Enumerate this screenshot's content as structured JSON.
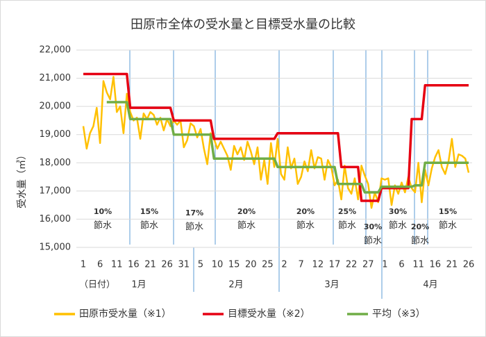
{
  "chart_data": {
    "type": "line",
    "title": "田原市全体の受水量と目標受水量の比較",
    "y_label": "受水量（㎥）",
    "x_label": "（日付）",
    "months": [
      "1月",
      "2月",
      "3月",
      "4月"
    ],
    "categories": [
      "1",
      null,
      null,
      null,
      null,
      "6",
      null,
      null,
      null,
      null,
      "11",
      null,
      null,
      null,
      null,
      "16",
      null,
      null,
      null,
      null,
      "21",
      null,
      null,
      null,
      null,
      "26",
      null,
      null,
      null,
      null,
      "31",
      null,
      null,
      null,
      null,
      "5",
      null,
      null,
      null,
      null,
      "10",
      null,
      null,
      null,
      null,
      "15",
      null,
      null,
      null,
      null,
      "20",
      null,
      null,
      null,
      null,
      "25",
      null,
      null,
      null,
      null,
      "2",
      null,
      null,
      null,
      null,
      "7",
      null,
      null,
      null,
      null,
      "12",
      null,
      null,
      null,
      null,
      "17",
      null,
      null,
      null,
      null,
      "22",
      null,
      null,
      null,
      null,
      "27",
      null,
      null,
      null,
      null,
      "1",
      null,
      null,
      null,
      null,
      "6",
      null,
      null,
      null,
      null,
      "11",
      null,
      null,
      null,
      null,
      "16",
      null,
      null,
      null,
      null,
      "21",
      null,
      null,
      null,
      null,
      "26"
    ],
    "ylim": [
      15000,
      22000
    ],
    "yticks": [
      {
        "value": 15000,
        "label": "15,000"
      },
      {
        "value": 16000,
        "label": "16,000"
      },
      {
        "value": 17000,
        "label": "17,000"
      },
      {
        "value": 18000,
        "label": "18,000"
      },
      {
        "value": 19000,
        "label": "19,000"
      },
      {
        "value": 20000,
        "label": "20,000"
      },
      {
        "value": 21000,
        "label": "21,000"
      },
      {
        "value": 22000,
        "label": "22,000"
      }
    ],
    "grid": true,
    "annotations": [
      {
        "rate": "10%",
        "text": "節水"
      },
      {
        "rate": "15%",
        "text": "節水"
      },
      {
        "rate": "17%",
        "text": "節水"
      },
      {
        "rate": "20%",
        "text": "節水"
      },
      {
        "rate": "20%",
        "text": "節水"
      },
      {
        "rate": "25%",
        "text": "節水"
      },
      {
        "rate": "30%",
        "text": "節水"
      },
      {
        "rate": "30%",
        "text": "節水"
      },
      {
        "rate": "20%",
        "text": "節水"
      },
      {
        "rate": "15%",
        "text": "節水"
      }
    ],
    "series": [
      {
        "name": "田原市受水量（※1）",
        "color": "#FFC000",
        "width": 2.5,
        "values": [
          19300,
          18500,
          19050,
          19300,
          19950,
          18700,
          20900,
          20500,
          20250,
          21050,
          19800,
          20000,
          19050,
          20450,
          19800,
          19500,
          19600,
          18850,
          19750,
          19550,
          19800,
          19700,
          19350,
          19600,
          19150,
          19550,
          19300,
          19500,
          19350,
          19500,
          18550,
          18800,
          19400,
          19300,
          18900,
          19200,
          18500,
          17950,
          19050,
          18850,
          18500,
          18750,
          18500,
          18250,
          17750,
          18600,
          18300,
          18550,
          18100,
          18750,
          18400,
          17950,
          18550,
          17400,
          18100,
          17250,
          18700,
          17850,
          18850,
          17600,
          17400,
          18550,
          17800,
          18150,
          17250,
          17500,
          18050,
          17700,
          18450,
          17800,
          18200,
          18150,
          17400,
          18100,
          17850,
          17200,
          17400,
          16700,
          17900,
          17100,
          16900,
          17450,
          16700,
          17900,
          17550,
          17250,
          16400,
          16950,
          16600,
          17450,
          17400,
          17450,
          16500,
          17200,
          16900,
          17300,
          16950,
          17500,
          17100,
          16950,
          18000,
          16600,
          17750,
          17200,
          17800,
          18200,
          18450,
          17850,
          17600,
          18050,
          18850,
          17850,
          18300,
          18250,
          18150,
          17650
        ]
      },
      {
        "name": "目標受水量（※2）",
        "color": "#E60012",
        "width": 3.5,
        "values": [
          21150,
          21150,
          21150,
          21150,
          21150,
          21150,
          21150,
          21150,
          21150,
          21150,
          21150,
          21150,
          21150,
          21150,
          19950,
          19950,
          19950,
          19950,
          19950,
          19950,
          19950,
          19950,
          19950,
          19950,
          19950,
          19950,
          19950,
          19500,
          19500,
          19500,
          19500,
          19500,
          19500,
          19500,
          19500,
          19500,
          19500,
          19500,
          19500,
          18850,
          18850,
          18850,
          18850,
          18850,
          18850,
          18850,
          18850,
          18850,
          18850,
          18850,
          18850,
          18850,
          18850,
          18850,
          18850,
          18850,
          18850,
          18850,
          19050,
          19050,
          19050,
          19050,
          19050,
          19050,
          19050,
          19050,
          19050,
          19050,
          19050,
          19050,
          19050,
          19050,
          19050,
          19050,
          19050,
          19050,
          19050,
          17850,
          17850,
          17850,
          17850,
          17850,
          17850,
          16650,
          16650,
          16650,
          16650,
          16650,
          16650,
          17100,
          17100,
          17100,
          17100,
          17100,
          17100,
          17100,
          17100,
          17100,
          19550,
          19550,
          19550,
          19550,
          20750,
          20750,
          20750,
          20750,
          20750,
          20750,
          20750,
          20750,
          20750,
          20750,
          20750,
          20750,
          20750,
          20750
        ]
      },
      {
        "name": "平均（※3）",
        "color": "#70AD47",
        "width": 3.5,
        "values": [
          null,
          null,
          null,
          null,
          null,
          null,
          null,
          20150,
          20150,
          20150,
          20150,
          20150,
          20150,
          20150,
          19550,
          19550,
          19550,
          19550,
          19550,
          19550,
          19550,
          19550,
          19550,
          19550,
          19550,
          19550,
          19550,
          19000,
          19000,
          19000,
          19000,
          19000,
          19000,
          19000,
          19000,
          19000,
          19000,
          19000,
          19000,
          18150,
          18150,
          18150,
          18150,
          18150,
          18150,
          18150,
          18150,
          18150,
          18150,
          18150,
          18150,
          18150,
          18150,
          18150,
          18150,
          18150,
          18150,
          18150,
          17850,
          17850,
          17850,
          17850,
          17850,
          17850,
          17850,
          17850,
          17850,
          17850,
          17850,
          17850,
          17850,
          17850,
          17850,
          17850,
          17850,
          17850,
          17250,
          17250,
          17250,
          17250,
          17250,
          17250,
          17250,
          17250,
          16950,
          16950,
          16950,
          16950,
          16950,
          17150,
          17150,
          17150,
          17150,
          17150,
          17150,
          17150,
          17150,
          17150,
          17150,
          17200,
          17200,
          17200,
          18000,
          18000,
          18000,
          18000,
          18000,
          18000,
          18000,
          18000,
          18000,
          18000,
          18000,
          18000,
          18000,
          18000
        ]
      }
    ]
  }
}
